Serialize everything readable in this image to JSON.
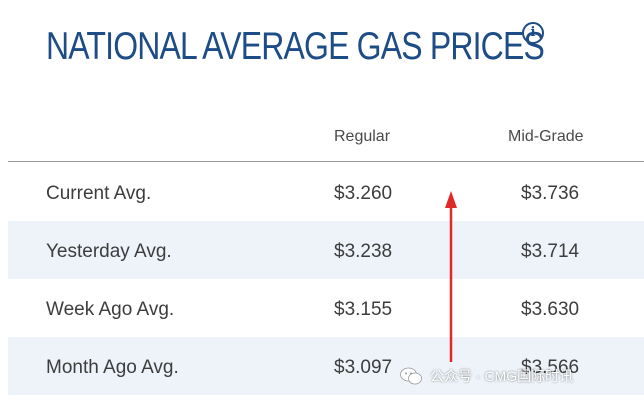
{
  "title": "NATIONAL AVERAGE GAS PRICES",
  "info_icon": "i",
  "columns": {
    "regular": "Regular",
    "mid_grade": "Mid-Grade"
  },
  "rows": [
    {
      "label": "Current Avg.",
      "regular": "$3.260",
      "mid_grade": "$3.736"
    },
    {
      "label": "Yesterday Avg.",
      "regular": "$3.238",
      "mid_grade": "$3.714"
    },
    {
      "label": "Week Ago Avg.",
      "regular": "$3.155",
      "mid_grade": "$3.630"
    },
    {
      "label": "Month Ago Avg.",
      "regular": "$3.097",
      "mid_grade": "$3.566"
    }
  ],
  "colors": {
    "title": "#1e4c86",
    "row_shade": "#edf3f9",
    "arrow": "#e02a2a"
  },
  "watermark": {
    "text": "公众号 · CMG国际时讯",
    "icon": "wechat-icon"
  }
}
